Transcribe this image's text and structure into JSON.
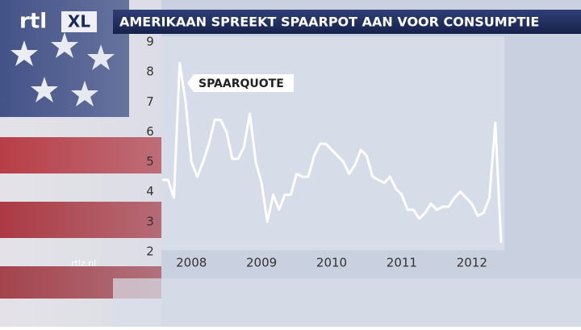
{
  "logo": {
    "brand": "rtl",
    "badge": "XL"
  },
  "footer": "rtlz.nl",
  "chart_data": {
    "type": "line",
    "title": "AMERIKAAN SPREEKT SPAARPOT AAN VOOR CONSUMPTIE",
    "categories": [
      null,
      null,
      null,
      null,
      null,
      "2008",
      null,
      null,
      null,
      null,
      null,
      null,
      null,
      null,
      null,
      null,
      null,
      "2009",
      null,
      null,
      null,
      null,
      null,
      null,
      null,
      null,
      null,
      null,
      null,
      "2010",
      null,
      null,
      null,
      null,
      null,
      null,
      null,
      null,
      null,
      null,
      null,
      "2011",
      null,
      null,
      null,
      null,
      null,
      null,
      null,
      null,
      null,
      null,
      null,
      "2012",
      null,
      null,
      null,
      null,
      null
    ],
    "series": [
      {
        "name": "SPAARQUOTE",
        "color": "#ffffff",
        "values": [
          4.4,
          4.4,
          3.8,
          8.3,
          7.0,
          5.0,
          4.5,
          5.0,
          5.6,
          6.4,
          6.4,
          6.0,
          5.1,
          5.1,
          5.5,
          6.6,
          5.0,
          4.3,
          3.0,
          3.9,
          3.4,
          3.9,
          3.9,
          4.6,
          4.5,
          4.5,
          5.2,
          5.6,
          5.6,
          5.4,
          5.2,
          5.0,
          4.6,
          4.9,
          5.4,
          5.2,
          4.5,
          4.4,
          4.3,
          4.5,
          4.1,
          3.9,
          3.4,
          3.4,
          3.1,
          3.3,
          3.6,
          3.4,
          3.5,
          3.5,
          3.8,
          4.0,
          3.8,
          3.6,
          3.2,
          3.3,
          3.8,
          6.3,
          2.3
        ]
      }
    ],
    "ylim": [
      2,
      9
    ],
    "yticks": [
      2,
      3,
      4,
      5,
      6,
      7,
      8,
      9
    ]
  }
}
